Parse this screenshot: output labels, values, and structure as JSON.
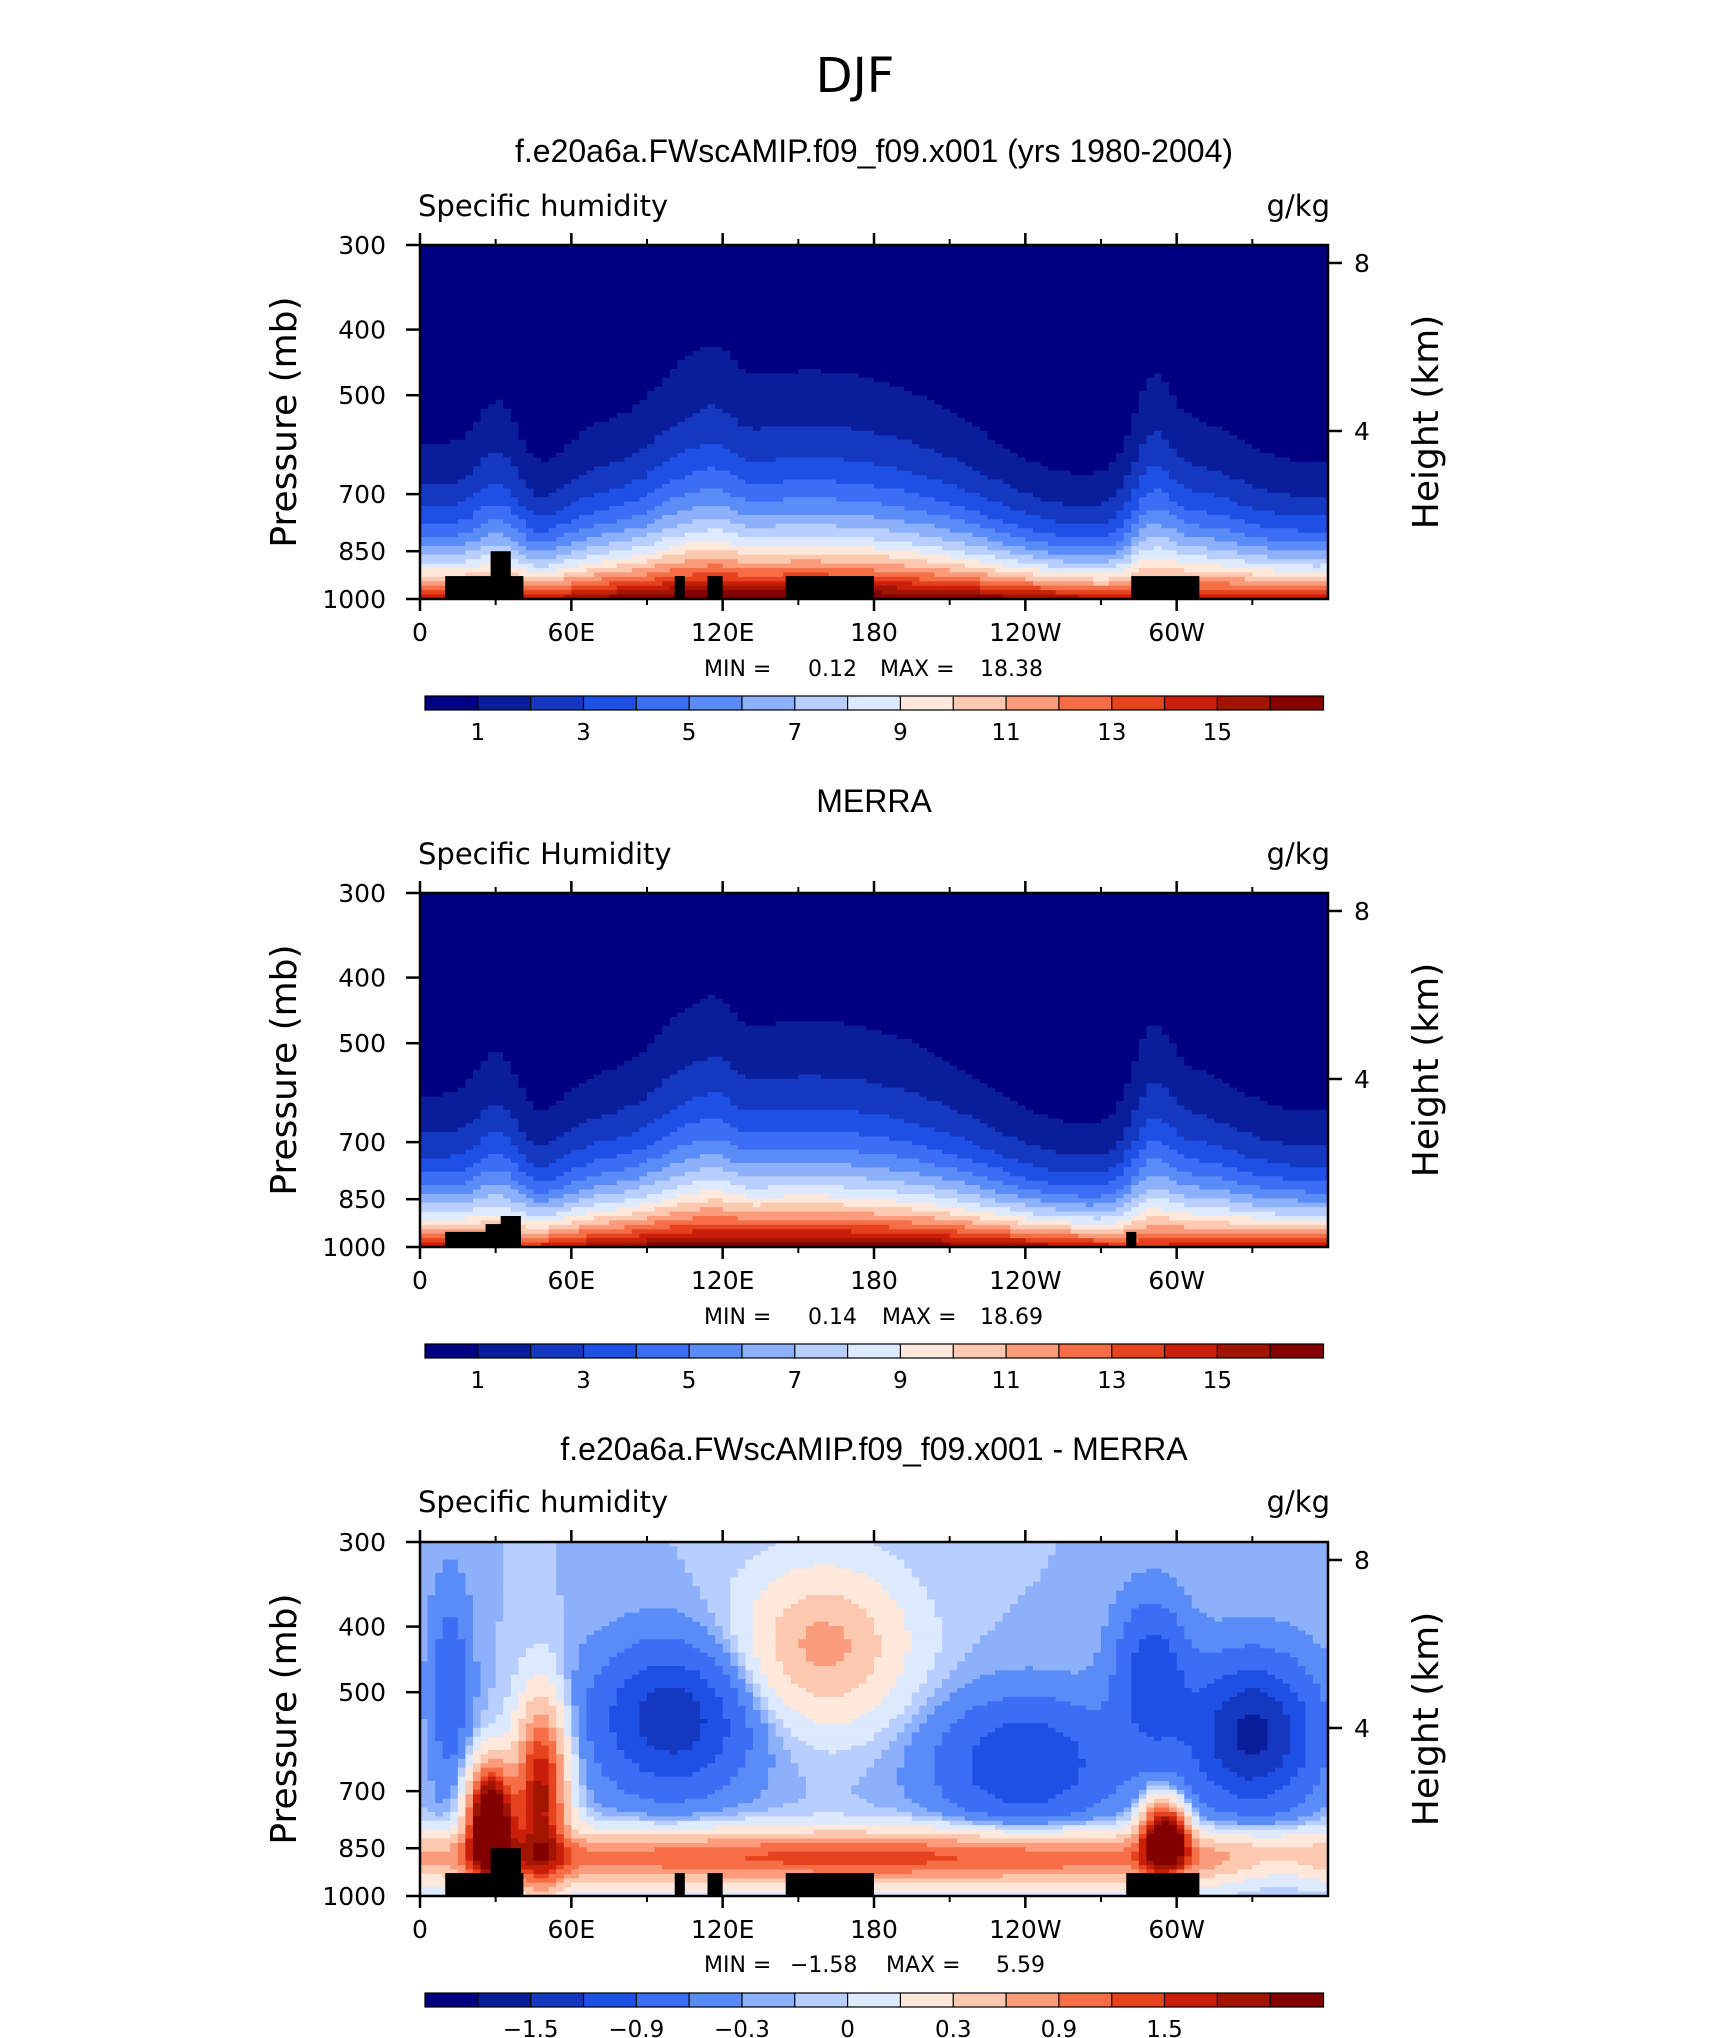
{
  "suptitle": "DJF",
  "colors": {
    "levels": [
      "#000080",
      "#0a1e9c",
      "#1438c0",
      "#1e50e6",
      "#3c6ef5",
      "#5a8cf8",
      "#8cb0fa",
      "#b8cefc",
      "#dce9fe",
      "#fee8dc",
      "#fcc8b0",
      "#fa9c7c",
      "#f56e46",
      "#e6421e",
      "#c81e0a",
      "#a01400",
      "#820000"
    ],
    "land": "#000000",
    "colorbar_outline": "#000000"
  },
  "chart_data": [
    {
      "type": "heatmap",
      "title": "f.e20a6a.FWscAMIP.f09_f09.x001 (yrs 1980-2004)",
      "left_label": "Specific humidity",
      "right_label": "g/kg",
      "ylabel": "Pressure (mb)",
      "ylabel_right": "Height (km)",
      "x_ticks": [
        {
          "lon": 0,
          "label": "0"
        },
        {
          "lon": 60,
          "label": "60E"
        },
        {
          "lon": 120,
          "label": "120E"
        },
        {
          "lon": 180,
          "label": "180"
        },
        {
          "lon": 240,
          "label": "120W"
        },
        {
          "lon": 300,
          "label": "60W"
        }
      ],
      "x_minor": [
        30,
        90,
        150,
        210,
        270,
        330
      ],
      "xlim": [
        0,
        360
      ],
      "y_ticks": [
        300,
        400,
        500,
        700,
        850,
        1000
      ],
      "ylim": [
        300,
        1000
      ],
      "height_ticks_km": [
        4,
        8
      ],
      "min_label": "MIN =",
      "min": "0.12",
      "max_label": "MAX =",
      "max": "18.38",
      "colorbar_labels": [
        "1",
        "3",
        "5",
        "7",
        "9",
        "11",
        "13",
        "15"
      ],
      "field": "fullq",
      "land": [
        {
          "lon0": 10,
          "lon1": 41,
          "p": 925
        },
        {
          "lon0": 28,
          "lon1": 36,
          "p": 850
        },
        {
          "lon0": 101,
          "lon1": 105,
          "p": 925
        },
        {
          "lon0": 114,
          "lon1": 120,
          "p": 925
        },
        {
          "lon0": 145,
          "lon1": 180,
          "p": 925
        },
        {
          "lon0": 282,
          "lon1": 309,
          "p": 925
        }
      ]
    },
    {
      "type": "heatmap",
      "title": "MERRA",
      "left_label": "Specific Humidity",
      "right_label": "g/kg",
      "ylabel": "Pressure (mb)",
      "ylabel_right": "Height (km)",
      "x_ticks": [
        {
          "lon": 0,
          "label": "0"
        },
        {
          "lon": 60,
          "label": "60E"
        },
        {
          "lon": 120,
          "label": "120E"
        },
        {
          "lon": 180,
          "label": "180"
        },
        {
          "lon": 240,
          "label": "120W"
        },
        {
          "lon": 300,
          "label": "60W"
        }
      ],
      "x_minor": [
        30,
        90,
        150,
        210,
        270,
        330
      ],
      "xlim": [
        0,
        360
      ],
      "y_ticks": [
        300,
        400,
        500,
        700,
        850,
        1000
      ],
      "ylim": [
        300,
        1000
      ],
      "height_ticks_km": [
        4,
        8
      ],
      "min_label": "MIN =",
      "min": "0.14",
      "max_label": "MAX =",
      "max": "18.69",
      "colorbar_labels": [
        "1",
        "3",
        "5",
        "7",
        "9",
        "11",
        "13",
        "15"
      ],
      "field": "fullq",
      "land": [
        {
          "lon0": 10,
          "lon1": 40,
          "p": 950
        },
        {
          "lon0": 26,
          "lon1": 33,
          "p": 925
        },
        {
          "lon0": 32,
          "lon1": 40,
          "p": 900
        },
        {
          "lon0": 280,
          "lon1": 284,
          "p": 950
        }
      ]
    },
    {
      "type": "heatmap",
      "title": "f.e20a6a.FWscAMIP.f09_f09.x001 - MERRA",
      "left_label": "Specific humidity",
      "right_label": "g/kg",
      "ylabel": "Pressure (mb)",
      "ylabel_right": "Height (km)",
      "x_ticks": [
        {
          "lon": 0,
          "label": "0"
        },
        {
          "lon": 60,
          "label": "60E"
        },
        {
          "lon": 120,
          "label": "120E"
        },
        {
          "lon": 180,
          "label": "180"
        },
        {
          "lon": 240,
          "label": "120W"
        },
        {
          "lon": 300,
          "label": "60W"
        }
      ],
      "x_minor": [
        30,
        90,
        150,
        210,
        270,
        330
      ],
      "xlim": [
        0,
        360
      ],
      "y_ticks": [
        300,
        400,
        500,
        700,
        850,
        1000
      ],
      "ylim": [
        300,
        1000
      ],
      "height_ticks_km": [
        4,
        8
      ],
      "min_label": "MIN =",
      "min": "−1.58",
      "max_label": "MAX =",
      "max": "5.59",
      "colorbar_labels": [
        "−1.5",
        "−0.9",
        "−0.3",
        "0",
        "0.3",
        "0.9",
        "1.5"
      ],
      "field": "diff",
      "land": [
        {
          "lon0": 10,
          "lon1": 41,
          "p": 925
        },
        {
          "lon0": 28,
          "lon1": 40,
          "p": 850
        },
        {
          "lon0": 101,
          "lon1": 105,
          "p": 925
        },
        {
          "lon0": 114,
          "lon1": 120,
          "p": 925
        },
        {
          "lon0": 145,
          "lon1": 180,
          "p": 925
        },
        {
          "lon0": 280,
          "lon1": 309,
          "p": 925
        }
      ]
    }
  ]
}
